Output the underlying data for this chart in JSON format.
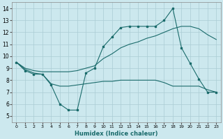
{
  "xlabel": "Humidex (Indice chaleur)",
  "xlim": [
    -0.5,
    23.5
  ],
  "ylim": [
    4.5,
    14.5
  ],
  "yticks": [
    5,
    6,
    7,
    8,
    9,
    10,
    11,
    12,
    13,
    14
  ],
  "xticks": [
    0,
    1,
    2,
    3,
    4,
    5,
    6,
    7,
    8,
    9,
    10,
    11,
    12,
    13,
    14,
    15,
    16,
    17,
    18,
    19,
    20,
    21,
    22,
    23
  ],
  "bg_color": "#cce8ee",
  "line_color": "#1a6b6b",
  "grid_color": "#aaccd4",
  "line1_x": [
    0,
    1,
    2,
    3,
    4,
    5,
    6,
    7,
    8,
    9,
    10,
    11,
    12,
    13,
    14,
    15,
    16,
    17,
    18,
    19,
    20,
    21,
    22,
    23
  ],
  "line1_y": [
    9.5,
    8.8,
    8.5,
    8.5,
    7.6,
    6.0,
    5.5,
    5.5,
    8.6,
    9.0,
    10.8,
    11.6,
    12.4,
    12.5,
    12.5,
    12.5,
    12.5,
    13.0,
    14.0,
    10.7,
    9.4,
    8.1,
    7.0,
    7.0
  ],
  "line2_x": [
    0,
    1,
    2,
    3,
    4,
    5,
    6,
    7,
    8,
    9,
    10,
    11,
    12,
    13,
    14,
    15,
    16,
    17,
    18,
    19,
    20,
    21,
    22,
    23
  ],
  "line2_y": [
    9.5,
    9.0,
    8.8,
    8.7,
    8.7,
    8.7,
    8.7,
    8.8,
    9.0,
    9.2,
    9.8,
    10.2,
    10.7,
    11.0,
    11.2,
    11.5,
    11.7,
    12.0,
    12.3,
    12.5,
    12.5,
    12.3,
    11.8,
    11.4
  ],
  "line3_x": [
    0,
    1,
    2,
    3,
    4,
    5,
    6,
    7,
    8,
    9,
    10,
    11,
    12,
    13,
    14,
    15,
    16,
    17,
    18,
    19,
    20,
    21,
    22,
    23
  ],
  "line3_y": [
    9.5,
    8.9,
    8.6,
    8.5,
    7.7,
    7.5,
    7.5,
    7.6,
    7.7,
    7.8,
    7.9,
    7.9,
    8.0,
    8.0,
    8.0,
    8.0,
    8.0,
    7.8,
    7.5,
    7.5,
    7.5,
    7.5,
    7.2,
    7.0
  ]
}
